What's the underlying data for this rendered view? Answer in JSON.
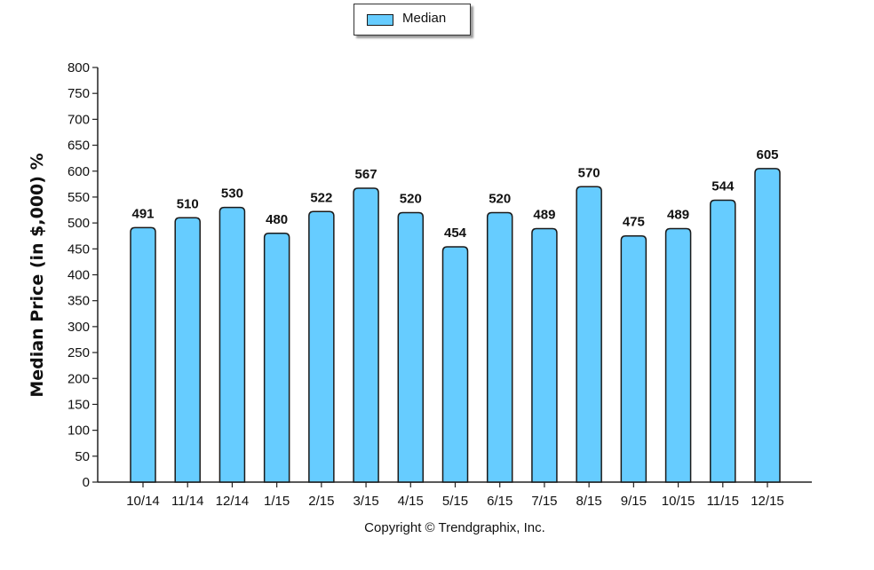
{
  "legend": {
    "label": "Median",
    "swatch_color": "#66ccff"
  },
  "footer": {
    "copyright": "Copyright © Trendgraphix, Inc."
  },
  "chart_data": {
    "type": "bar",
    "title": "",
    "xlabel": "",
    "ylabel": "Median Price (in $,000) %",
    "ylim": [
      0,
      800
    ],
    "ytick_step": 50,
    "grid": false,
    "legend_position": "top-center",
    "bar_color": "#66ccff",
    "categories": [
      "10/14",
      "11/14",
      "12/14",
      "1/15",
      "2/15",
      "3/15",
      "4/15",
      "5/15",
      "6/15",
      "7/15",
      "8/15",
      "9/15",
      "10/15",
      "11/15",
      "12/15"
    ],
    "series": [
      {
        "name": "Median",
        "values": [
          491,
          510,
          530,
          480,
          522,
          567,
          520,
          454,
          520,
          489,
          570,
          475,
          489,
          544,
          605
        ]
      }
    ]
  }
}
